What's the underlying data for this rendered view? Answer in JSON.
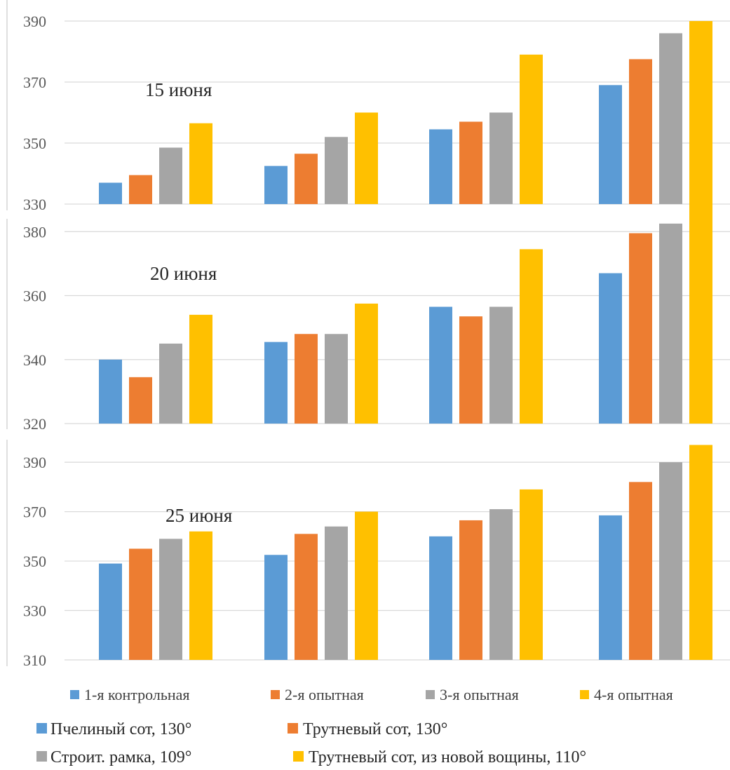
{
  "chart_data": {
    "type": "bar",
    "colors": [
      "#5b9bd5",
      "#ed7d31",
      "#a5a5a5",
      "#ffc000"
    ],
    "panels": [
      {
        "title": "15 июня",
        "ylim": [
          330,
          390
        ],
        "yticks": [
          330,
          350,
          370,
          390
        ],
        "series": [
          {
            "name": "1-я контрольная",
            "values": [
              337,
              342.5,
              354.5,
              369
            ]
          },
          {
            "name": "2-я опытная",
            "values": [
              339.5,
              346.5,
              357,
              377.5
            ]
          },
          {
            "name": "3-я опытная",
            "values": [
              348.5,
              352,
              360,
              386
            ]
          },
          {
            "name": "4-я опытная",
            "values": [
              356.5,
              360,
              379,
              390
            ]
          }
        ]
      },
      {
        "title": "20 июня",
        "ylim": [
          320,
          384
        ],
        "yticks": [
          320,
          340,
          360,
          380
        ],
        "series": [
          {
            "name": "1-я контрольная",
            "values": [
              340,
              345.5,
              356.5,
              367
            ]
          },
          {
            "name": "2-я опытная",
            "values": [
              334.5,
              348,
              353.5,
              379.5
            ]
          },
          {
            "name": "3-я опытная",
            "values": [
              345,
              348,
              356.5,
              382.5
            ]
          },
          {
            "name": "4-я опытная",
            "values": [
              354,
              357.5,
              374.5,
              389
            ]
          }
        ]
      },
      {
        "title": "25 июня",
        "ylim": [
          310,
          396
        ],
        "yticks": [
          310,
          330,
          350,
          370,
          390
        ],
        "series": [
          {
            "name": "1-я контрольная",
            "values": [
              349,
              352.5,
              360,
              368.5
            ]
          },
          {
            "name": "2-я опытная",
            "values": [
              355,
              361,
              366.5,
              382
            ]
          },
          {
            "name": "3-я опытная",
            "values": [
              359,
              364,
              371,
              390
            ]
          },
          {
            "name": "4-я опытная",
            "values": [
              362,
              370,
              379,
              397
            ]
          }
        ]
      }
    ],
    "legend_groups": [
      "1-я контрольная",
      "2-я опытная",
      "3-я опытная",
      "4-я опытная"
    ],
    "legend_treatments": [
      "Пчелиный сот, 130°",
      "Трутневый сот, 130°",
      "Строит. рамка, 109°",
      "Трутневый сот, из новой вощины, 110°"
    ],
    "grid": true,
    "legend_position": "bottom"
  }
}
